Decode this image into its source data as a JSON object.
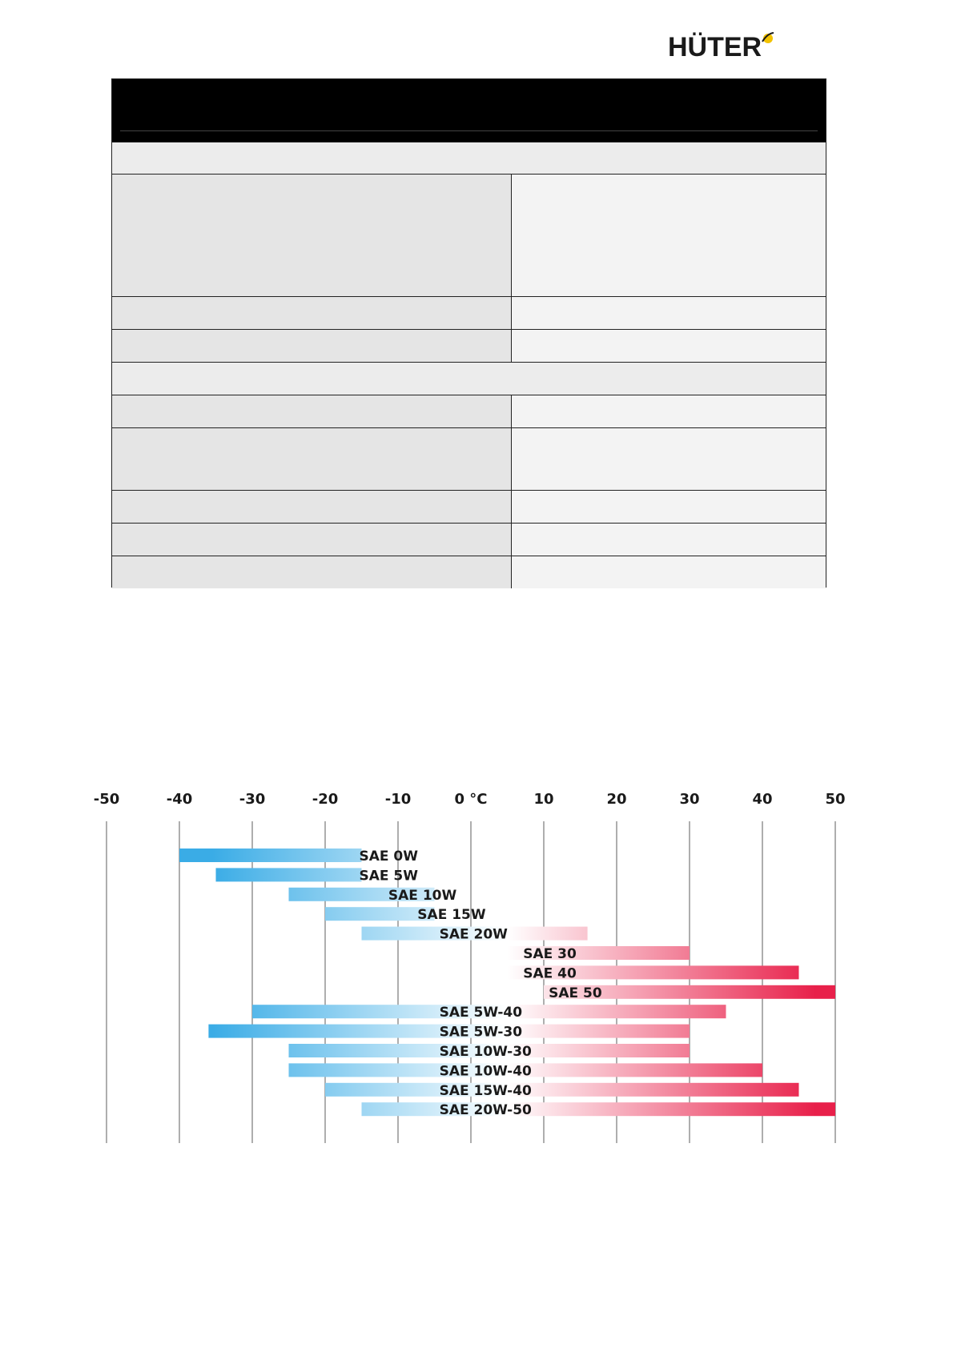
{
  "logo": {
    "text": "HÜTER",
    "mark": "sun-mark-icon"
  },
  "chart_data": {
    "type": "range-bar",
    "x_ticks": [
      "-50",
      "-40",
      "-30",
      "-20",
      "-10",
      "0 °C",
      "10",
      "20",
      "30",
      "40",
      "50"
    ],
    "xlim": [
      -50,
      50
    ],
    "colors": {
      "cold": "#3aace6",
      "neutral": "#ffffff",
      "warm": "#e8204a",
      "grid": "#9a9a9a"
    },
    "series": [
      {
        "label": "SAE 0W",
        "min": -40,
        "max": -15
      },
      {
        "label": "SAE 5W",
        "min": -35,
        "max": -15
      },
      {
        "label": "SAE 10W",
        "min": -25,
        "max": -5
      },
      {
        "label": "SAE 15W",
        "min": -20,
        "max": -5
      },
      {
        "label": "SAE 20W",
        "min": -15,
        "max": 16
      },
      {
        "label": "SAE 30",
        "min": 5,
        "max": 30
      },
      {
        "label": "SAE 40",
        "min": 5,
        "max": 45
      },
      {
        "label": "SAE 50",
        "min": 10,
        "max": 50
      },
      {
        "label": "SAE 5W-40",
        "min": -30,
        "max": 35
      },
      {
        "label": "SAE 5W-30",
        "min": -36,
        "max": 30
      },
      {
        "label": "SAE 10W-30",
        "min": -25,
        "max": 30
      },
      {
        "label": "SAE 10W-40",
        "min": -25,
        "max": 40
      },
      {
        "label": "SAE 15W-40",
        "min": -20,
        "max": 45
      },
      {
        "label": "SAE 20W-50",
        "min": -15,
        "max": 50
      }
    ]
  }
}
